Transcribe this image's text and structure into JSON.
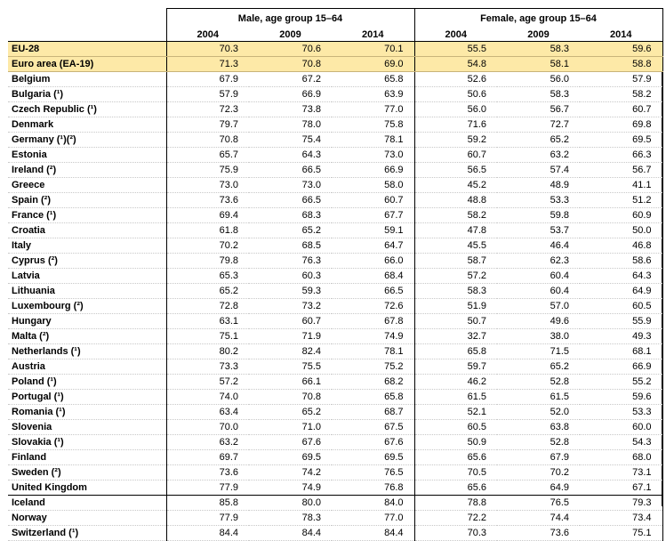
{
  "table": {
    "groups": [
      "Male, age group 15–64",
      "Female, age group 15–64"
    ],
    "years": [
      "2004",
      "2009",
      "2014",
      "2004",
      "2009",
      "2014"
    ],
    "rows": [
      {
        "label": "EU-28",
        "values": [
          "70.3",
          "70.6",
          "70.1",
          "55.5",
          "58.3",
          "59.6"
        ],
        "kind": "agg"
      },
      {
        "label": "Euro area (EA-19)",
        "values": [
          "71.3",
          "70.8",
          "69.0",
          "54.8",
          "58.1",
          "58.8"
        ],
        "kind": "agg"
      },
      {
        "label": "Belgium",
        "values": [
          "67.9",
          "67.2",
          "65.8",
          "52.6",
          "56.0",
          "57.9"
        ]
      },
      {
        "label": "Bulgaria (¹)",
        "values": [
          "57.9",
          "66.9",
          "63.9",
          "50.6",
          "58.3",
          "58.2"
        ]
      },
      {
        "label": "Czech Republic (¹)",
        "values": [
          "72.3",
          "73.8",
          "77.0",
          "56.0",
          "56.7",
          "60.7"
        ]
      },
      {
        "label": "Denmark",
        "values": [
          "79.7",
          "78.0",
          "75.8",
          "71.6",
          "72.7",
          "69.8"
        ]
      },
      {
        "label": "Germany (¹)(²)",
        "values": [
          "70.8",
          "75.4",
          "78.1",
          "59.2",
          "65.2",
          "69.5"
        ]
      },
      {
        "label": "Estonia",
        "values": [
          "65.7",
          "64.3",
          "73.0",
          "60.7",
          "63.2",
          "66.3"
        ]
      },
      {
        "label": "Ireland (²)",
        "values": [
          "75.9",
          "66.5",
          "66.9",
          "56.5",
          "57.4",
          "56.7"
        ]
      },
      {
        "label": "Greece",
        "values": [
          "73.0",
          "73.0",
          "58.0",
          "45.2",
          "48.9",
          "41.1"
        ]
      },
      {
        "label": "Spain (²)",
        "values": [
          "73.6",
          "66.5",
          "60.7",
          "48.8",
          "53.3",
          "51.2"
        ]
      },
      {
        "label": "France (¹)",
        "values": [
          "69.4",
          "68.3",
          "67.7",
          "58.2",
          "59.8",
          "60.9"
        ]
      },
      {
        "label": "Croatia",
        "values": [
          "61.8",
          "65.2",
          "59.1",
          "47.8",
          "53.7",
          "50.0"
        ]
      },
      {
        "label": "Italy",
        "values": [
          "70.2",
          "68.5",
          "64.7",
          "45.5",
          "46.4",
          "46.8"
        ]
      },
      {
        "label": "Cyprus (²)",
        "values": [
          "79.8",
          "76.3",
          "66.0",
          "58.7",
          "62.3",
          "58.6"
        ]
      },
      {
        "label": "Latvia",
        "values": [
          "65.3",
          "60.3",
          "68.4",
          "57.2",
          "60.4",
          "64.3"
        ]
      },
      {
        "label": "Lithuania",
        "values": [
          "65.2",
          "59.3",
          "66.5",
          "58.3",
          "60.4",
          "64.9"
        ]
      },
      {
        "label": "Luxembourg (²)",
        "values": [
          "72.8",
          "73.2",
          "72.6",
          "51.9",
          "57.0",
          "60.5"
        ]
      },
      {
        "label": "Hungary",
        "values": [
          "63.1",
          "60.7",
          "67.8",
          "50.7",
          "49.6",
          "55.9"
        ]
      },
      {
        "label": "Malta (²)",
        "values": [
          "75.1",
          "71.9",
          "74.9",
          "32.7",
          "38.0",
          "49.3"
        ]
      },
      {
        "label": "Netherlands (¹)",
        "values": [
          "80.2",
          "82.4",
          "78.1",
          "65.8",
          "71.5",
          "68.1"
        ]
      },
      {
        "label": "Austria",
        "values": [
          "73.3",
          "75.5",
          "75.2",
          "59.7",
          "65.2",
          "66.9"
        ]
      },
      {
        "label": "Poland (¹)",
        "values": [
          "57.2",
          "66.1",
          "68.2",
          "46.2",
          "52.8",
          "55.2"
        ]
      },
      {
        "label": "Portugal (¹)",
        "values": [
          "74.0",
          "70.8",
          "65.8",
          "61.5",
          "61.5",
          "59.6"
        ]
      },
      {
        "label": "Romania (¹)",
        "values": [
          "63.4",
          "65.2",
          "68.7",
          "52.1",
          "52.0",
          "53.3"
        ]
      },
      {
        "label": "Slovenia",
        "values": [
          "70.0",
          "71.0",
          "67.5",
          "60.5",
          "63.8",
          "60.0"
        ]
      },
      {
        "label": "Slovakia (¹)",
        "values": [
          "63.2",
          "67.6",
          "67.6",
          "50.9",
          "52.8",
          "54.3"
        ]
      },
      {
        "label": "Finland",
        "values": [
          "69.7",
          "69.5",
          "69.5",
          "65.6",
          "67.9",
          "68.0"
        ]
      },
      {
        "label": "Sweden (²)",
        "values": [
          "73.6",
          "74.2",
          "76.5",
          "70.5",
          "70.2",
          "73.1"
        ]
      },
      {
        "label": "United Kingdom",
        "values": [
          "77.9",
          "74.9",
          "76.8",
          "65.6",
          "64.9",
          "67.1"
        ]
      },
      {
        "label": "Iceland",
        "values": [
          "85.8",
          "80.0",
          "84.0",
          "78.8",
          "76.5",
          "79.3"
        ],
        "kind": "sep"
      },
      {
        "label": "Norway",
        "values": [
          "77.9",
          "78.3",
          "77.0",
          "72.2",
          "74.4",
          "73.4"
        ]
      },
      {
        "label": "Switzerland (¹)",
        "values": [
          "84.4",
          "84.4",
          "84.4",
          "70.3",
          "73.6",
          "75.1"
        ]
      }
    ]
  }
}
